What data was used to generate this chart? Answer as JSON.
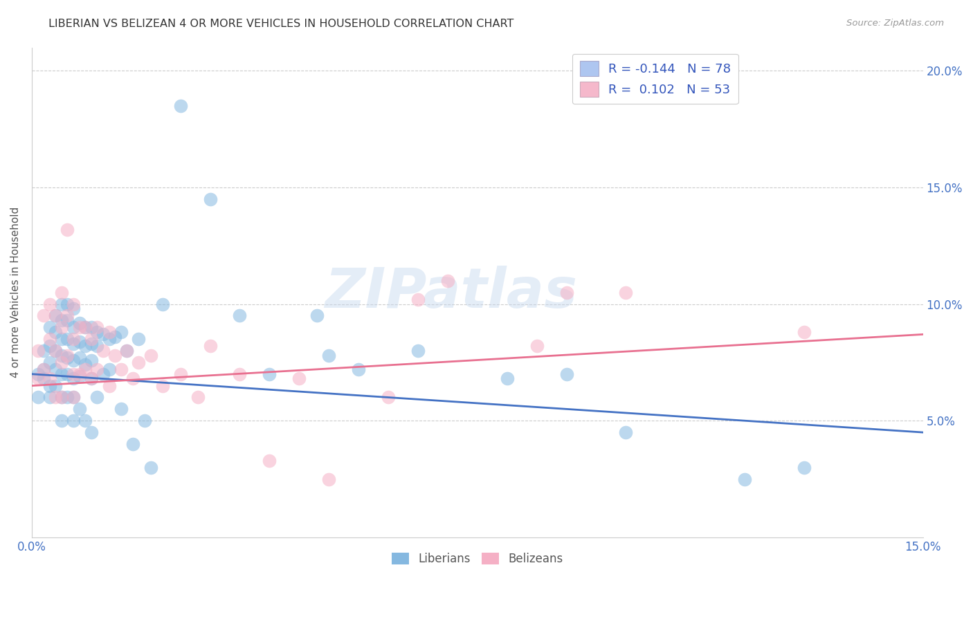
{
  "title": "LIBERIAN VS BELIZEAN 4 OR MORE VEHICLES IN HOUSEHOLD CORRELATION CHART",
  "source": "Source: ZipAtlas.com",
  "ylabel": "4 or more Vehicles in Household",
  "xlim": [
    0.0,
    0.15
  ],
  "ylim": [
    0.0,
    0.21
  ],
  "xticks": [
    0.0,
    0.03,
    0.06,
    0.09,
    0.12,
    0.15
  ],
  "xticklabels": [
    "0.0%",
    "",
    "",
    "",
    "",
    "15.0%"
  ],
  "yticks": [
    0.0,
    0.05,
    0.1,
    0.15,
    0.2
  ],
  "yticklabels_right": [
    "",
    "5.0%",
    "10.0%",
    "15.0%",
    "20.0%"
  ],
  "legend_label_1": "R = -0.144   N = 78",
  "legend_label_2": "R =  0.102   N = 53",
  "legend_color_1": "#aec6f0",
  "legend_color_2": "#f5b8cb",
  "liberian_color": "#85b8e0",
  "belizean_color": "#f5b0c5",
  "trend_liberian_color": "#4472c4",
  "trend_belizean_color": "#e87090",
  "watermark_text": "ZIPatlas",
  "trend_lib_start_y": 0.07,
  "trend_lib_end_y": 0.045,
  "trend_bel_start_y": 0.065,
  "trend_bel_end_y": 0.087,
  "liberian_x": [
    0.001,
    0.001,
    0.002,
    0.002,
    0.002,
    0.003,
    0.003,
    0.003,
    0.003,
    0.003,
    0.004,
    0.004,
    0.004,
    0.004,
    0.004,
    0.005,
    0.005,
    0.005,
    0.005,
    0.005,
    0.005,
    0.005,
    0.006,
    0.006,
    0.006,
    0.006,
    0.006,
    0.006,
    0.007,
    0.007,
    0.007,
    0.007,
    0.007,
    0.007,
    0.007,
    0.008,
    0.008,
    0.008,
    0.008,
    0.008,
    0.009,
    0.009,
    0.009,
    0.009,
    0.01,
    0.01,
    0.01,
    0.01,
    0.01,
    0.011,
    0.011,
    0.011,
    0.012,
    0.012,
    0.013,
    0.013,
    0.014,
    0.015,
    0.015,
    0.016,
    0.017,
    0.018,
    0.019,
    0.02,
    0.022,
    0.025,
    0.03,
    0.035,
    0.04,
    0.048,
    0.05,
    0.055,
    0.065,
    0.08,
    0.09,
    0.1,
    0.12,
    0.13
  ],
  "liberian_y": [
    0.07,
    0.06,
    0.08,
    0.072,
    0.068,
    0.09,
    0.082,
    0.075,
    0.065,
    0.06,
    0.095,
    0.088,
    0.08,
    0.072,
    0.065,
    0.1,
    0.093,
    0.085,
    0.078,
    0.07,
    0.06,
    0.05,
    0.1,
    0.093,
    0.085,
    0.077,
    0.07,
    0.06,
    0.098,
    0.09,
    0.083,
    0.076,
    0.068,
    0.06,
    0.05,
    0.092,
    0.084,
    0.077,
    0.069,
    0.055,
    0.09,
    0.082,
    0.074,
    0.05,
    0.09,
    0.083,
    0.076,
    0.068,
    0.045,
    0.088,
    0.082,
    0.06,
    0.087,
    0.07,
    0.085,
    0.072,
    0.086,
    0.088,
    0.055,
    0.08,
    0.04,
    0.085,
    0.05,
    0.03,
    0.1,
    0.185,
    0.145,
    0.095,
    0.07,
    0.095,
    0.078,
    0.072,
    0.08,
    0.068,
    0.07,
    0.045,
    0.025,
    0.03
  ],
  "belizean_x": [
    0.001,
    0.001,
    0.002,
    0.002,
    0.003,
    0.003,
    0.003,
    0.004,
    0.004,
    0.004,
    0.005,
    0.005,
    0.005,
    0.005,
    0.006,
    0.006,
    0.006,
    0.007,
    0.007,
    0.007,
    0.007,
    0.008,
    0.008,
    0.009,
    0.009,
    0.01,
    0.01,
    0.011,
    0.011,
    0.012,
    0.013,
    0.013,
    0.014,
    0.015,
    0.016,
    0.017,
    0.018,
    0.02,
    0.022,
    0.025,
    0.028,
    0.03,
    0.035,
    0.04,
    0.045,
    0.05,
    0.06,
    0.065,
    0.07,
    0.085,
    0.09,
    0.1,
    0.13
  ],
  "belizean_y": [
    0.08,
    0.068,
    0.095,
    0.072,
    0.1,
    0.085,
    0.068,
    0.095,
    0.08,
    0.06,
    0.105,
    0.09,
    0.075,
    0.06,
    0.132,
    0.095,
    0.078,
    0.1,
    0.085,
    0.07,
    0.06,
    0.09,
    0.07,
    0.09,
    0.072,
    0.085,
    0.068,
    0.09,
    0.072,
    0.08,
    0.088,
    0.065,
    0.078,
    0.072,
    0.08,
    0.068,
    0.075,
    0.078,
    0.065,
    0.07,
    0.06,
    0.082,
    0.07,
    0.033,
    0.068,
    0.025,
    0.06,
    0.102,
    0.11,
    0.082,
    0.105,
    0.105,
    0.088
  ]
}
